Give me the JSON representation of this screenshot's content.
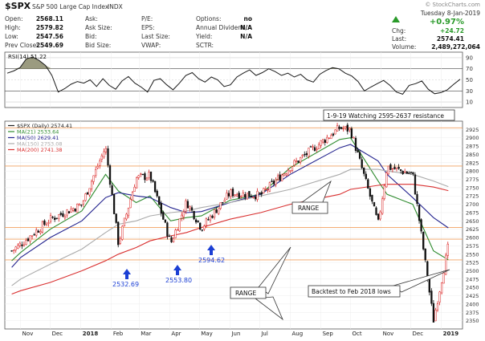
{
  "header": {
    "symbol": "$SPX",
    "name": "S&P 500 Large Cap Index",
    "exchange": "INDX",
    "copyright": "© StockCharts.com",
    "date": "Tuesday  8-Jan-2019",
    "change_pct": "+0.97%",
    "change": "+24.72",
    "last": "2574.41",
    "volume": "2,489,272,064",
    "labels": {
      "chg": "Chg:",
      "last": "Last:",
      "volume": "Volume:"
    },
    "quote_rows": [
      {
        "label": "Open:",
        "value": "2568.11"
      },
      {
        "label": "High:",
        "value": "2579.82"
      },
      {
        "label": "Low:",
        "value": "2547.56"
      },
      {
        "label": "Prev Close:",
        "value": "2549.69"
      }
    ],
    "col2": [
      "Ask:",
      "Ask Size:",
      "Bid:",
      "Bid Size:"
    ],
    "col3": [
      "P/E:",
      "EPS:",
      "Last Size:",
      "VWAP:"
    ],
    "col4": [
      {
        "label": "Options:",
        "value": "no"
      },
      {
        "label": "Annual Dividend:",
        "value": "N/A"
      },
      {
        "label": "Yield:",
        "value": "N/A"
      },
      {
        "label": "SCTR:",
        "value": ""
      }
    ]
  },
  "rsi_panel": {
    "label": "RSI(14) 51.22",
    "levels": [
      "90",
      "70",
      "50",
      "30",
      "10"
    ],
    "values": [
      62,
      66,
      72,
      88,
      91,
      85,
      76,
      58,
      28,
      34,
      42,
      47,
      44,
      50,
      38,
      52,
      40,
      33,
      48,
      56,
      44,
      37,
      28,
      49,
      52,
      41,
      32,
      44,
      58,
      63,
      52,
      46,
      55,
      50,
      38,
      41,
      55,
      62,
      68,
      58,
      63,
      70,
      65,
      58,
      62,
      55,
      60,
      50,
      46,
      60,
      67,
      72,
      70,
      62,
      57,
      47,
      30,
      37,
      43,
      49,
      40,
      28,
      24,
      40,
      43,
      48,
      33,
      25,
      27,
      32,
      42,
      51
    ]
  },
  "price_panel": {
    "legend": [
      {
        "text": "$SPX (Daily) 2574.41",
        "color": "#222222"
      },
      {
        "text": "MA(21) 2533.64",
        "color": "#2e8b2e"
      },
      {
        "text": "MA(50) 2629.41",
        "color": "#23238e"
      },
      {
        "text": "MA(150) 2753.08",
        "color": "#aaaaaa"
      },
      {
        "text": "MA(200) 2741.38",
        "color": "#d93030"
      }
    ],
    "annotations": {
      "note": "1-9-19 Watching 2595-2637 resistance",
      "range_top": "RANGE",
      "range_bottom": "RANGE",
      "backtest": "Backtest to Feb 2018 lows"
    },
    "arrows": [
      "2532.69",
      "2553.80",
      "2594.62"
    ],
    "price_labels": [
      "2925",
      "2900",
      "2875",
      "2850",
      "2825",
      "2800",
      "2775",
      "2750",
      "2725",
      "2700",
      "2675",
      "2650",
      "2625",
      "2600",
      "2575",
      "2550",
      "2525",
      "2500",
      "2475",
      "2450",
      "2425",
      "2400",
      "2375",
      "2350"
    ],
    "x_labels": [
      "Nov",
      "Dec",
      "2018",
      "Feb",
      "Mar",
      "Apr",
      "May",
      "Jun",
      "Jul",
      "Aug",
      "Sep",
      "Oct",
      "Nov",
      "Dec",
      "2019"
    ]
  },
  "colors": {
    "up": "#d92020",
    "down": "#111111",
    "orange_line": "#f2a060",
    "blue_arrow": "#1b3fd4"
  },
  "chart_data": {
    "type": "line",
    "title": "$SPX S&P 500 Large Cap Index INDX",
    "xlabel": "",
    "ylabel": "",
    "ylim": [
      2325,
      2950
    ],
    "x": [
      "2017-10-23",
      "2017-11-01",
      "2017-12-01",
      "2018-01-02",
      "2018-01-26",
      "2018-02-08",
      "2018-02-26",
      "2018-03-12",
      "2018-04-02",
      "2018-04-18",
      "2018-05-03",
      "2018-06-01",
      "2018-07-02",
      "2018-08-01",
      "2018-09-20",
      "2018-10-01",
      "2018-10-29",
      "2018-11-07",
      "2018-12-03",
      "2018-12-24",
      "2019-01-08"
    ],
    "series": [
      {
        "name": "$SPX (Daily) 2574.41",
        "values": [
          2560,
          2580,
          2655,
          2700,
          2872,
          2582,
          2779,
          2786,
          2582,
          2708,
          2629,
          2734,
          2727,
          2813,
          2930,
          2924,
          2641,
          2813,
          2790,
          2351,
          2574
        ]
      },
      {
        "name": "MA(21) 2533.64",
        "values": [
          2530,
          2555,
          2625,
          2680,
          2790,
          2740,
          2705,
          2725,
          2650,
          2660,
          2665,
          2712,
          2730,
          2810,
          2895,
          2900,
          2770,
          2730,
          2700,
          2560,
          2533
        ]
      },
      {
        "name": "MA(50) 2629.41",
        "values": [
          2510,
          2540,
          2600,
          2650,
          2720,
          2735,
          2725,
          2720,
          2690,
          2675,
          2678,
          2705,
          2730,
          2790,
          2870,
          2880,
          2830,
          2790,
          2720,
          2660,
          2629
        ]
      },
      {
        "name": "MA(150) 2753.08",
        "values": [
          2455,
          2475,
          2520,
          2565,
          2615,
          2640,
          2650,
          2665,
          2675,
          2680,
          2690,
          2705,
          2725,
          2745,
          2790,
          2805,
          2805,
          2800,
          2790,
          2770,
          2753
        ]
      },
      {
        "name": "MA(200) 2741.38",
        "values": [
          2430,
          2440,
          2465,
          2500,
          2530,
          2550,
          2570,
          2590,
          2605,
          2615,
          2630,
          2655,
          2675,
          2700,
          2730,
          2745,
          2757,
          2760,
          2760,
          2752,
          2741
        ]
      }
    ],
    "reference_lines": [
      2930,
      2815,
      2630,
      2595,
      2532.69
    ],
    "grid": true
  }
}
